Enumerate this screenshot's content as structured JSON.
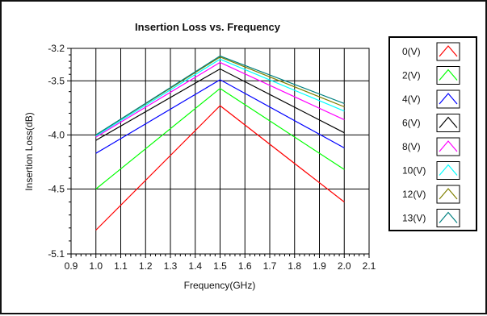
{
  "chart_data": {
    "type": "line",
    "title": "Insertion Loss vs. Frequency",
    "xlabel": "Frequency(GHz)",
    "ylabel": "Insertion Loss(dB)",
    "xlim": [
      0.9,
      2.1
    ],
    "ylim": [
      -5.1,
      -3.2
    ],
    "x_ticks": [
      "0.9",
      "1.0",
      "1.1",
      "1.2",
      "1.3",
      "1.4",
      "1.5",
      "1.6",
      "1.7",
      "1.8",
      "1.9",
      "2.0",
      "2.1"
    ],
    "y_ticks": [
      "-3.2",
      "-3.5",
      "-4.0",
      "-4.5",
      "-5.1"
    ],
    "grid": true,
    "legend_position": "right",
    "x": [
      1.0,
      1.5,
      2.0
    ],
    "series": [
      {
        "name": "0(V)",
        "color": "#ff0000",
        "values": [
          -4.88,
          -3.73,
          -4.62
        ]
      },
      {
        "name": "2(V)",
        "color": "#00ff00",
        "values": [
          -4.5,
          -3.57,
          -4.32
        ]
      },
      {
        "name": "4(V)",
        "color": "#0000ff",
        "values": [
          -4.17,
          -3.49,
          -4.12
        ]
      },
      {
        "name": "6(V)",
        "color": "#000000",
        "values": [
          -4.05,
          -3.39,
          -3.98
        ]
      },
      {
        "name": "8(V)",
        "color": "#ff00ff",
        "values": [
          -4.02,
          -3.33,
          -3.86
        ]
      },
      {
        "name": "10(V)",
        "color": "#00ffff",
        "values": [
          -4.01,
          -3.3,
          -3.78
        ]
      },
      {
        "name": "12(V)",
        "color": "#808000",
        "values": [
          -4.0,
          -3.28,
          -3.74
        ]
      },
      {
        "name": "13(V)",
        "color": "#008080",
        "values": [
          -4.0,
          -3.27,
          -3.71
        ]
      }
    ]
  }
}
